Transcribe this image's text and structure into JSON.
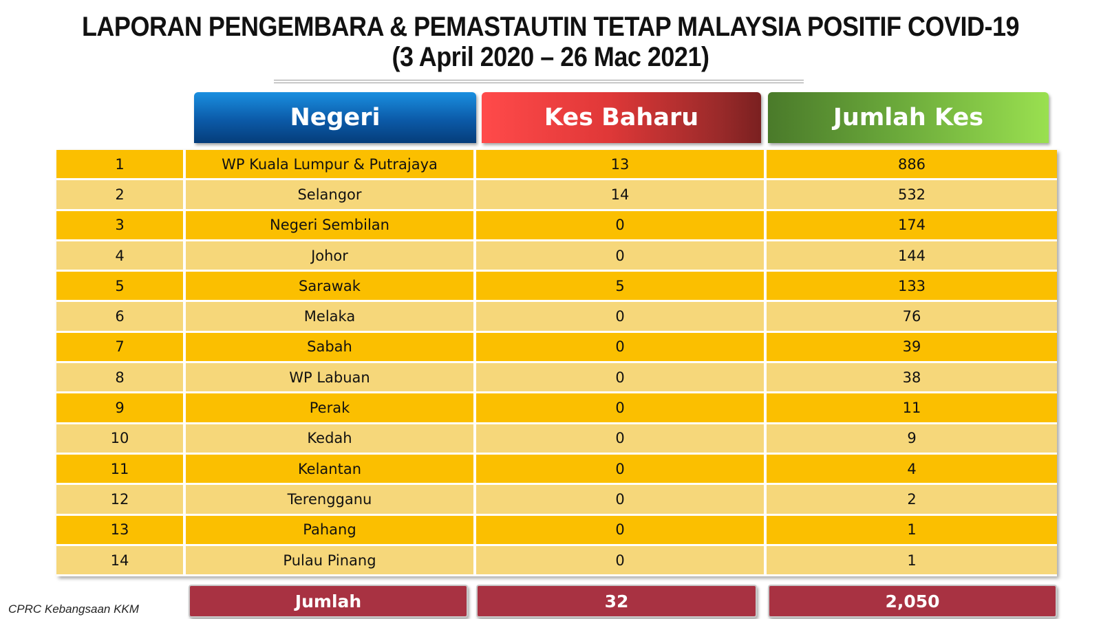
{
  "title": {
    "line1": "LAPORAN PENGEMBARA & PEMASTAUTIN TETAP MALAYSIA POSITIF COVID-19",
    "line2": "(3 April 2020 – 26 Mac 2021)"
  },
  "headers": {
    "negeri": "Negeri",
    "kes_baharu": "Kes Baharu",
    "jumlah_kes": "Jumlah Kes"
  },
  "rows": [
    {
      "no": "1",
      "negeri": "WP Kuala Lumpur & Putrajaya",
      "kes_baharu": "13",
      "jumlah_kes": "886"
    },
    {
      "no": "2",
      "negeri": "Selangor",
      "kes_baharu": "14",
      "jumlah_kes": "532"
    },
    {
      "no": "3",
      "negeri": "Negeri Sembilan",
      "kes_baharu": "0",
      "jumlah_kes": "174"
    },
    {
      "no": "4",
      "negeri": "Johor",
      "kes_baharu": "0",
      "jumlah_kes": "144"
    },
    {
      "no": "5",
      "negeri": "Sarawak",
      "kes_baharu": "5",
      "jumlah_kes": "133"
    },
    {
      "no": "6",
      "negeri": "Melaka",
      "kes_baharu": "0",
      "jumlah_kes": "76"
    },
    {
      "no": "7",
      "negeri": "Sabah",
      "kes_baharu": "0",
      "jumlah_kes": "39"
    },
    {
      "no": "8",
      "negeri": "WP Labuan",
      "kes_baharu": "0",
      "jumlah_kes": "38"
    },
    {
      "no": "9",
      "negeri": "Perak",
      "kes_baharu": "0",
      "jumlah_kes": "11"
    },
    {
      "no": "10",
      "negeri": "Kedah",
      "kes_baharu": "0",
      "jumlah_kes": "9"
    },
    {
      "no": "11",
      "negeri": "Kelantan",
      "kes_baharu": "0",
      "jumlah_kes": "4"
    },
    {
      "no": "12",
      "negeri": "Terengganu",
      "kes_baharu": "0",
      "jumlah_kes": "2"
    },
    {
      "no": "13",
      "negeri": "Pahang",
      "kes_baharu": "0",
      "jumlah_kes": "1"
    },
    {
      "no": "14",
      "negeri": "Pulau Pinang",
      "kes_baharu": "0",
      "jumlah_kes": "1"
    }
  ],
  "footer": {
    "label": "Jumlah",
    "kes_baharu_total": "32",
    "jumlah_kes_total": "2,050"
  },
  "source": "CPRC Kebangsaan KKM",
  "colors": {
    "row_odd": "#fbbf00",
    "row_even": "#f6d77a",
    "total_bg": "#a83242"
  }
}
